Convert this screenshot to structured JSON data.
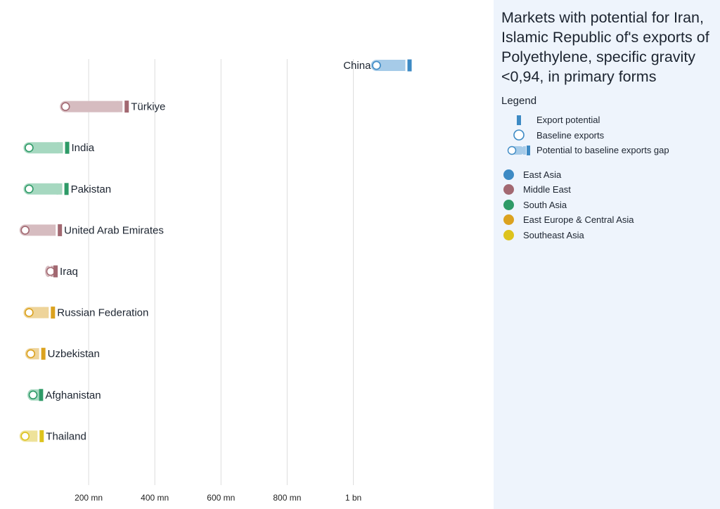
{
  "sidebar": {
    "title": "Markets with potential for Iran, Islamic Republic of's exports of Polyethylene, specific gravity <0,94, in primary forms",
    "legend_heading": "Legend",
    "legend_keys": [
      {
        "label": "Export potential",
        "icon": "export-potential-bar"
      },
      {
        "label": "Baseline exports",
        "icon": "baseline-circle"
      },
      {
        "label": "Potential to baseline exports gap",
        "icon": "gap-bar"
      }
    ],
    "regions": [
      {
        "label": "East Asia",
        "color": "#3d8ac4"
      },
      {
        "label": "Middle East",
        "color": "#a26871"
      },
      {
        "label": "South Asia",
        "color": "#2e9a67"
      },
      {
        "label": "East Europe & Central Asia",
        "color": "#dba21f"
      },
      {
        "label": "Southeast Asia",
        "color": "#ddc31d"
      }
    ]
  },
  "chart_data": {
    "type": "bar",
    "units": "USD",
    "x_ticks": [
      {
        "value": 200000000,
        "label": "200 mn"
      },
      {
        "value": 400000000,
        "label": "400 mn"
      },
      {
        "value": 600000000,
        "label": "600 mn"
      },
      {
        "value": 800000000,
        "label": "800 mn"
      },
      {
        "value": 1000000000,
        "label": "1 bn"
      }
    ],
    "grid": true,
    "legend_position": "right",
    "series": [
      {
        "market": "China",
        "region": "East Asia",
        "baseline": 1070000000,
        "potential": 1170000000,
        "label_side": "left"
      },
      {
        "market": "Türkiye",
        "region": "Middle East",
        "baseline": 130000000,
        "potential": 315000000,
        "label_side": "right"
      },
      {
        "market": "India",
        "region": "South Asia",
        "baseline": 20000000,
        "potential": 135000000,
        "label_side": "right"
      },
      {
        "market": "Pakistan",
        "region": "South Asia",
        "baseline": 20000000,
        "potential": 133000000,
        "label_side": "right"
      },
      {
        "market": "United Arab Emirates",
        "region": "Middle East",
        "baseline": 8000000,
        "potential": 113000000,
        "label_side": "right"
      },
      {
        "market": "Iraq",
        "region": "Middle East",
        "baseline": 85000000,
        "potential": 100000000,
        "label_side": "right"
      },
      {
        "market": "Russian Federation",
        "region": "East Europe & Central Asia",
        "baseline": 20000000,
        "potential": 92000000,
        "label_side": "right"
      },
      {
        "market": "Uzbekistan",
        "region": "East Europe & Central Asia",
        "baseline": 25000000,
        "potential": 63000000,
        "label_side": "right"
      },
      {
        "market": "Afghanistan",
        "region": "South Asia",
        "baseline": 32000000,
        "potential": 56000000,
        "label_side": "right"
      },
      {
        "market": "Thailand",
        "region": "Southeast Asia",
        "baseline": 8000000,
        "potential": 58000000,
        "label_side": "right"
      }
    ]
  }
}
